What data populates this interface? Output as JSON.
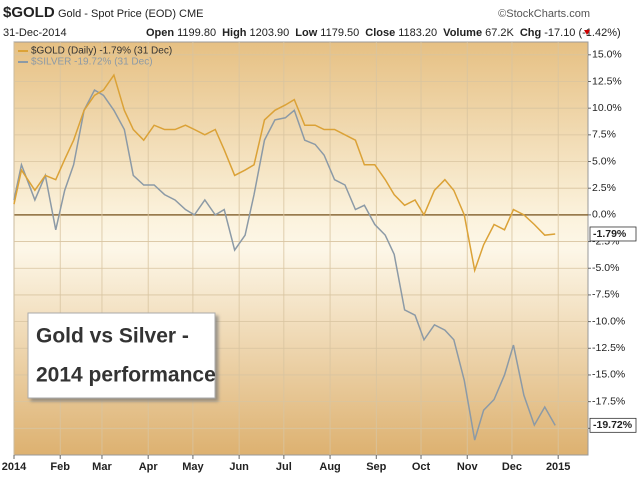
{
  "chart_data": {
    "type": "line",
    "title": "$GOLD",
    "subtitle": "Gold - Spot Price (EOD) CME",
    "source": "©StockCharts.com",
    "date": "31-Dec-2014",
    "stats": [
      {
        "label": "Open",
        "value": "1199.80"
      },
      {
        "label": "High",
        "value": "1203.90"
      },
      {
        "label": "Low",
        "value": "1179.50"
      },
      {
        "label": "Close",
        "value": "1183.20"
      },
      {
        "label": "Volume",
        "value": "67.2K"
      },
      {
        "label": "Chg",
        "value": "-17.10 (-1.42%)"
      }
    ],
    "annotation": [
      "Gold vs Silver -",
      "2014 performance"
    ],
    "x": [
      0,
      5,
      14,
      21,
      28,
      34,
      40,
      47,
      54,
      60,
      67,
      74,
      80,
      87,
      94,
      101,
      108,
      115,
      121,
      128,
      135,
      141,
      148,
      155,
      161,
      168,
      175,
      182,
      188,
      195,
      202,
      208,
      215,
      222,
      229,
      235,
      242,
      249,
      255,
      262,
      269,
      275,
      282,
      289,
      295,
      302,
      309,
      315,
      322,
      329,
      335,
      342,
      349,
      356,
      363
    ],
    "series": [
      {
        "name": "$GOLD (Daily) -1.79% (31 Dec)",
        "color": "#dba237",
        "last_value_label": "-1.79%",
        "values": [
          1.0,
          4.2,
          2.3,
          3.7,
          3.3,
          5.2,
          7.0,
          9.8,
          11.2,
          11.7,
          13.1,
          9.8,
          8.0,
          7.0,
          8.4,
          8.0,
          8.0,
          8.4,
          8.0,
          7.5,
          8.0,
          6.1,
          3.7,
          4.2,
          4.7,
          8.9,
          9.8,
          10.3,
          10.8,
          8.4,
          8.4,
          8.0,
          8.0,
          7.5,
          7.0,
          4.7,
          4.7,
          3.3,
          1.9,
          0.9,
          1.4,
          0.0,
          2.3,
          3.3,
          2.3,
          0.0,
          -5.2,
          -2.8,
          -0.9,
          -1.4,
          0.5,
          0.0,
          -0.9,
          -1.9,
          -1.79
        ]
      },
      {
        "name": "$SILVER -19.72% (31 Dec)",
        "color": "#8c9aa6",
        "last_value_label": "-19.72%",
        "values": [
          1.4,
          4.7,
          1.4,
          3.7,
          -1.4,
          2.3,
          4.7,
          9.8,
          11.7,
          11.2,
          9.8,
          8.0,
          3.7,
          2.8,
          2.8,
          1.9,
          1.4,
          0.5,
          0.0,
          1.4,
          0.0,
          0.5,
          -3.3,
          -1.9,
          1.9,
          7.0,
          8.9,
          9.1,
          9.8,
          7.0,
          6.6,
          5.6,
          3.3,
          2.8,
          0.5,
          0.9,
          -0.9,
          -1.9,
          -3.7,
          -8.9,
          -9.4,
          -11.7,
          -10.3,
          -10.8,
          -11.7,
          -15.5,
          -21.1,
          -18.3,
          -17.3,
          -15.0,
          -12.2,
          -16.9,
          -19.7,
          -18.0,
          -19.72
        ]
      }
    ],
    "xlim": [
      0,
      385
    ],
    "xticks": [
      {
        "value": 0,
        "label": "2014"
      },
      {
        "value": 31,
        "label": "Feb"
      },
      {
        "value": 59,
        "label": "Mar"
      },
      {
        "value": 90,
        "label": "Apr"
      },
      {
        "value": 120,
        "label": "May"
      },
      {
        "value": 151,
        "label": "Jun"
      },
      {
        "value": 181,
        "label": "Jul"
      },
      {
        "value": 212,
        "label": "Aug"
      },
      {
        "value": 243,
        "label": "Sep"
      },
      {
        "value": 273,
        "label": "Oct"
      },
      {
        "value": 304,
        "label": "Nov"
      },
      {
        "value": 334,
        "label": "Dec"
      },
      {
        "value": 365,
        "label": "2015"
      }
    ],
    "ylim": [
      -22.5,
      16.2
    ],
    "yticks": [
      {
        "value": 15,
        "label": "15.0%"
      },
      {
        "value": 12.5,
        "label": "12.5%"
      },
      {
        "value": 10,
        "label": "10.0%"
      },
      {
        "value": 7.5,
        "label": "7.5%"
      },
      {
        "value": 5,
        "label": "5.0%"
      },
      {
        "value": 2.5,
        "label": "2.5%"
      },
      {
        "value": 0,
        "label": "0.0%"
      },
      {
        "value": -2.5,
        "label": "-2.5%"
      },
      {
        "value": -5,
        "label": "-5.0%"
      },
      {
        "value": -7.5,
        "label": "-7.5%"
      },
      {
        "value": -10,
        "label": "-10.0%"
      },
      {
        "value": -12.5,
        "label": "-12.5%"
      },
      {
        "value": -15,
        "label": "-15.0%"
      },
      {
        "value": -17.5,
        "label": "-17.5%"
      },
      {
        "value": -20,
        "label": "-20.0%"
      }
    ],
    "grid": true
  }
}
